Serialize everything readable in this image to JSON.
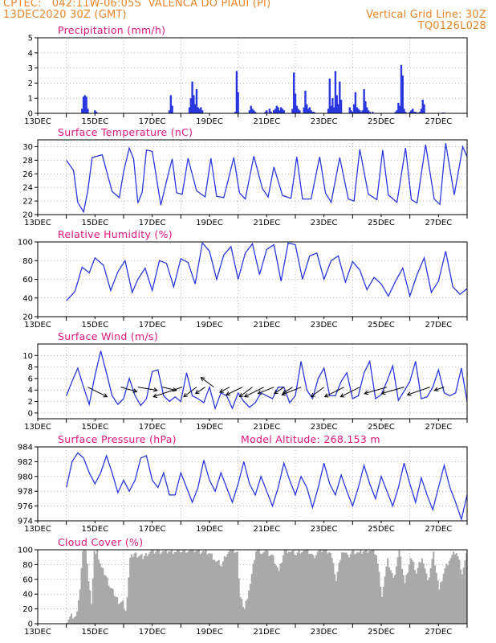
{
  "header": {
    "line1": "CPTEC:   042:11W-06:05S  VALENCA DO PIAUI (PI)",
    "line2": "13DEC2020 30Z (GMT)",
    "vgrid": "Vertical Grid Line: 30Z",
    "code": "TQ0126L028"
  },
  "colors": {
    "title": "#e0157a",
    "header": "#e9862b",
    "series": "#2a37e0",
    "cloud": "#a9a9a9",
    "grid": "#888888"
  },
  "x_axis": {
    "ticks": [
      "13DEC",
      "15DEC",
      "17DEC",
      "19DEC",
      "21DEC",
      "23DEC",
      "25DEC",
      "27DEC"
    ]
  },
  "chart_data": [
    {
      "type": "bar",
      "title": "Precipitation (mm/h)",
      "ylim": [
        0,
        5
      ],
      "yticks": [
        0,
        1,
        2,
        3,
        4,
        5
      ],
      "x": [
        0.55,
        0.6,
        0.65,
        0.7,
        0.75,
        1.0,
        1.05,
        3.6,
        3.65,
        3.7,
        4.3,
        4.35,
        4.4,
        4.45,
        4.5,
        4.55,
        4.6,
        4.65,
        4.7,
        4.75,
        5.9,
        5.95,
        6.0,
        6.4,
        6.45,
        6.5,
        6.55,
        6.6,
        6.95,
        7.0,
        7.1,
        7.15,
        7.25,
        7.3,
        7.35,
        7.4,
        7.45,
        7.5,
        7.55,
        7.6,
        7.9,
        7.95,
        8.0,
        8.05,
        8.1,
        8.15,
        8.3,
        8.35,
        8.4,
        8.45,
        8.5,
        8.55,
        8.6,
        8.65,
        9.15,
        9.2,
        9.25,
        9.3,
        9.35,
        9.4,
        9.45,
        9.5,
        9.55,
        9.6,
        9.9,
        9.95,
        10.0,
        10.05,
        10.1,
        10.15,
        10.2,
        10.25,
        10.3,
        10.35,
        10.4,
        10.45,
        10.5,
        10.55,
        10.6,
        10.7,
        11.5,
        11.55,
        11.6,
        11.65,
        11.7,
        11.75,
        11.8,
        11.85,
        12.0,
        12.05,
        12.1,
        12.15,
        12.2,
        12.25,
        12.3,
        12.35,
        12.4,
        12.45,
        12.5,
        13.15,
        13.2
      ],
      "values": [
        0.3,
        1.1,
        1.2,
        1.1,
        0.3,
        0.2,
        0.1,
        0.2,
        1.2,
        0.5,
        0.4,
        1.0,
        2.1,
        1.2,
        0.6,
        1.6,
        0.4,
        0.3,
        0.4,
        0.2,
        0.1,
        2.8,
        1.4,
        0.2,
        0.5,
        0.3,
        0.2,
        0.1,
        0.1,
        0.2,
        0.3,
        0.1,
        0.2,
        0.3,
        0.5,
        0.4,
        0.2,
        0.4,
        0.3,
        0.2,
        0.3,
        2.7,
        1.3,
        0.5,
        0.3,
        0.2,
        0.4,
        1.5,
        0.6,
        0.3,
        0.4,
        0.2,
        0.1,
        0.1,
        0.3,
        2.3,
        0.5,
        1.0,
        0.4,
        2.8,
        1.2,
        0.6,
        2.1,
        0.9,
        0.4,
        0.2,
        0.1,
        0.6,
        1.4,
        0.4,
        0.3,
        0.2,
        0.1,
        0.2,
        1.6,
        0.8,
        0.4,
        0.2,
        0.1,
        0.1,
        0.1,
        0.2,
        0.7,
        0.5,
        3.2,
        2.5,
        0.3,
        0.1,
        0.1,
        0.2,
        0.3,
        0.1,
        0.1,
        0.05,
        0.05,
        0.1,
        0.3,
        0.9,
        0.6,
        0.05,
        0.05
      ]
    },
    {
      "type": "line",
      "title": "Surface Temperature (nC)",
      "ylim": [
        20,
        31
      ],
      "yticks": [
        20,
        22,
        24,
        26,
        28,
        30
      ],
      "x": [
        0.0,
        0.25,
        0.4,
        0.6,
        0.75,
        0.9,
        1.25,
        1.6,
        1.85,
        2.0,
        2.2,
        2.35,
        2.5,
        2.65,
        2.8,
        3.0,
        3.3,
        3.55,
        3.7,
        3.85,
        4.05,
        4.25,
        4.55,
        4.85,
        5.05,
        5.25,
        5.5,
        5.85,
        6.05,
        6.25,
        6.55,
        6.85,
        7.05,
        7.25,
        7.55,
        7.85,
        8.05,
        8.25,
        8.55,
        8.85,
        9.05,
        9.25,
        9.55,
        9.85,
        10.05,
        10.25,
        10.55,
        10.85,
        11.05,
        11.25,
        11.55,
        11.85,
        12.05,
        12.25,
        12.55,
        12.85,
        13.05,
        13.25,
        13.55,
        13.85,
        14.0
      ],
      "values": [
        28,
        26.5,
        21.8,
        20.4,
        23.5,
        28.4,
        28.8,
        23.4,
        22.5,
        26.3,
        29.8,
        28.2,
        21.7,
        23.3,
        29.5,
        29.3,
        21.4,
        25.8,
        28.2,
        23.2,
        23.0,
        28.3,
        23.5,
        22.6,
        28.3,
        22.7,
        22.5,
        28.4,
        23.2,
        22.3,
        28.6,
        23.8,
        22.6,
        27.0,
        22.8,
        22.4,
        28.5,
        22.3,
        22.3,
        28.5,
        23.2,
        21.8,
        28.4,
        22.3,
        22.0,
        29.6,
        23.0,
        22.2,
        29.5,
        22.9,
        21.8,
        29.8,
        22.2,
        21.7,
        30.3,
        22.3,
        21.5,
        30.5,
        22.9,
        30.0,
        28.5
      ]
    },
    {
      "type": "line",
      "title": "Relative Humidity (%)",
      "ylim": [
        20,
        100
      ],
      "yticks": [
        20,
        40,
        60,
        80,
        100
      ],
      "x": [
        0.0,
        0.3,
        0.55,
        0.8,
        1.0,
        1.3,
        1.55,
        1.8,
        2.05,
        2.3,
        2.5,
        2.75,
        3.0,
        3.25,
        3.5,
        3.75,
        4.0,
        4.25,
        4.5,
        4.75,
        5.0,
        5.25,
        5.5,
        5.75,
        6.0,
        6.25,
        6.5,
        6.75,
        7.0,
        7.25,
        7.5,
        7.75,
        8.0,
        8.25,
        8.5,
        8.75,
        9.0,
        9.25,
        9.5,
        9.75,
        10.0,
        10.25,
        10.5,
        10.75,
        11.0,
        11.25,
        11.5,
        11.75,
        12.0,
        12.25,
        12.5,
        12.75,
        13.0,
        13.25,
        13.5,
        13.75,
        14.0
      ],
      "values": [
        37,
        47,
        73,
        67,
        83,
        75,
        48,
        68,
        80,
        46,
        60,
        72,
        48,
        80,
        77,
        52,
        82,
        78,
        55,
        99,
        90,
        60,
        86,
        95,
        60,
        88,
        98,
        65,
        92,
        97,
        58,
        99,
        97,
        60,
        85,
        88,
        60,
        80,
        85,
        57,
        79,
        70,
        49,
        62,
        55,
        42,
        58,
        72,
        42,
        65,
        83,
        46,
        58,
        90,
        52,
        44,
        50
      ]
    },
    {
      "type": "line",
      "title": "Surface Wind (m/s)",
      "ylim": [
        -1,
        12
      ],
      "yticks": [
        0,
        2,
        4,
        6,
        8,
        10
      ],
      "x": [
        0.0,
        0.2,
        0.4,
        0.6,
        0.8,
        1.0,
        1.2,
        1.4,
        1.6,
        1.8,
        2.0,
        2.2,
        2.4,
        2.6,
        2.8,
        3.0,
        3.2,
        3.4,
        3.6,
        3.8,
        4.0,
        4.2,
        4.4,
        4.6,
        4.8,
        5.0,
        5.2,
        5.4,
        5.6,
        5.8,
        6.0,
        6.2,
        6.4,
        6.6,
        6.8,
        7.0,
        7.2,
        7.4,
        7.6,
        7.8,
        8.0,
        8.2,
        8.4,
        8.6,
        8.8,
        9.0,
        9.2,
        9.4,
        9.6,
        9.8,
        10.0,
        10.2,
        10.4,
        10.6,
        10.8,
        11.0,
        11.2,
        11.4,
        11.6,
        11.8,
        12.0,
        12.2,
        12.4,
        12.6,
        12.8,
        13.0,
        13.2,
        13.4,
        13.6,
        13.8,
        14.0
      ],
      "values": [
        3,
        5.5,
        7.8,
        4.5,
        1.5,
        6.5,
        10.8,
        7,
        3,
        1.5,
        2.5,
        6,
        3,
        1.3,
        2.5,
        7.2,
        7.5,
        3,
        2,
        2.8,
        2,
        7,
        3,
        2.5,
        1.8,
        4.5,
        0.8,
        3.5,
        3,
        0.8,
        3.5,
        2,
        1,
        1.8,
        3.5,
        3,
        2.5,
        4.5,
        4.5,
        1.8,
        3,
        9,
        4,
        2.5,
        6,
        7.8,
        3,
        3,
        5.5,
        7,
        2.5,
        3,
        7,
        9,
        2.5,
        3.2,
        5.5,
        8.2,
        2.2,
        3.8,
        5.5,
        9,
        2.5,
        2.8,
        4.5,
        7.5,
        3.5,
        3,
        3.5,
        7.8,
        2
      ]
    },
    {
      "type": "line",
      "title": "Surface Pressure (hPa)",
      "annotation": "Model Altitude: 268.153 m",
      "ylim": [
        974,
        984
      ],
      "yticks": [
        974,
        976,
        978,
        980,
        982,
        984
      ],
      "x": [
        0.0,
        0.2,
        0.4,
        0.6,
        0.8,
        1.0,
        1.2,
        1.4,
        1.6,
        1.8,
        2.0,
        2.2,
        2.4,
        2.6,
        2.8,
        3.0,
        3.2,
        3.4,
        3.6,
        3.8,
        4.0,
        4.2,
        4.4,
        4.6,
        4.8,
        5.0,
        5.2,
        5.4,
        5.6,
        5.8,
        6.0,
        6.2,
        6.4,
        6.6,
        6.8,
        7.0,
        7.2,
        7.4,
        7.6,
        7.8,
        8.0,
        8.2,
        8.4,
        8.6,
        8.8,
        9.0,
        9.2,
        9.4,
        9.6,
        9.8,
        10.0,
        10.2,
        10.4,
        10.6,
        10.8,
        11.0,
        11.2,
        11.4,
        11.6,
        11.8,
        12.0,
        12.2,
        12.4,
        12.6,
        12.8,
        13.0,
        13.2,
        13.4,
        13.6,
        13.8,
        14.0
      ],
      "values": [
        978.5,
        982,
        983.2,
        982.5,
        980.5,
        979,
        980.5,
        982.8,
        980.5,
        977.8,
        979.5,
        978,
        979.5,
        982.5,
        982.8,
        979.5,
        978.5,
        980.5,
        977.5,
        977.5,
        980.5,
        978.5,
        976.5,
        978.5,
        982.2,
        979.5,
        978,
        980.5,
        978.5,
        976.5,
        979,
        982,
        979,
        977.5,
        980,
        978,
        976,
        978.5,
        981.8,
        979.5,
        977.5,
        980,
        978.5,
        975.8,
        978.5,
        981.8,
        979,
        977.5,
        980.2,
        978,
        976,
        978.5,
        981.5,
        979,
        977,
        980,
        978,
        976,
        978.5,
        981.8,
        979,
        976.5,
        979.8,
        977.5,
        975.5,
        978.5,
        981.5,
        978.5,
        976.5,
        974.2,
        977.5
      ]
    },
    {
      "type": "area",
      "title": "Cloud Cover (%)",
      "ylim": [
        0,
        100
      ],
      "yticks": [
        0,
        20,
        40,
        60,
        80,
        100
      ],
      "x": [
        0.0,
        0.15,
        0.3,
        0.45,
        0.55,
        0.65,
        0.75,
        0.85,
        0.95,
        1.05,
        1.2,
        1.35,
        1.5,
        1.65,
        1.8,
        1.95,
        2.05,
        2.2,
        2.35,
        2.5,
        2.65,
        2.8,
        3.0,
        3.2,
        3.4,
        3.6,
        3.8,
        4.0,
        4.2,
        4.4,
        4.6,
        4.8,
        5.0,
        5.2,
        5.4,
        5.6,
        5.8,
        5.95,
        6.05,
        6.2,
        6.4,
        6.6,
        6.8,
        7.0,
        7.2,
        7.4,
        7.6,
        7.8,
        8.0,
        8.2,
        8.4,
        8.6,
        8.8,
        9.0,
        9.2,
        9.4,
        9.6,
        9.8,
        10.0,
        10.2,
        10.4,
        10.6,
        10.8,
        11.0,
        11.2,
        11.4,
        11.6,
        11.8,
        12.0,
        12.2,
        12.4,
        12.6,
        12.8,
        13.0,
        13.2,
        13.4,
        13.6,
        13.8,
        14.0
      ],
      "values": [
        5,
        10,
        8,
        45,
        98,
        100,
        60,
        30,
        95,
        98,
        75,
        65,
        50,
        40,
        30,
        28,
        15,
        88,
        95,
        92,
        90,
        95,
        97,
        98,
        97,
        98,
        98,
        99,
        100,
        99,
        98,
        97,
        95,
        85,
        80,
        98,
        100,
        95,
        35,
        20,
        55,
        100,
        98,
        95,
        90,
        70,
        100,
        98,
        95,
        100,
        99,
        90,
        98,
        100,
        97,
        60,
        100,
        90,
        98,
        95,
        99,
        100,
        95,
        40,
        85,
        60,
        98,
        55,
        90,
        70,
        92,
        55,
        95,
        45,
        75,
        90,
        98,
        70,
        99
      ]
    }
  ],
  "wind_vectors": {
    "x": [
      0.75,
      1.9,
      2.5,
      3.35,
      4.05,
      4.55,
      4.85,
      5.15,
      5.7,
      6.15,
      6.5,
      6.9,
      7.25,
      7.6,
      7.9,
      8.2,
      9.0,
      9.7,
      10.25,
      11.2,
      11.8,
      12.7,
      13.2
    ],
    "u": [
      3,
      2.5,
      3,
      2.2,
      -4.5,
      -2,
      -1.5,
      -2,
      -1.5,
      -2.5,
      -2,
      -3,
      -2.5,
      -1.5,
      -1.5,
      -3,
      -2,
      -3,
      -3,
      -3.5,
      -3.5,
      -3.5,
      -1.5
    ],
    "v": [
      -1.5,
      -0.7,
      -0.5,
      -0.5,
      -1.5,
      -1.5,
      -1,
      1.5,
      -0.8,
      -1.2,
      -1.5,
      -1.5,
      -1,
      -1,
      -1,
      -1.2,
      -1.5,
      -1.5,
      -1.5,
      -1,
      -1,
      -1.2,
      -0.5
    ]
  }
}
